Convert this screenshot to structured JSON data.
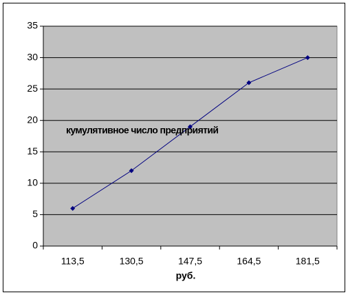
{
  "chart_data": {
    "type": "line",
    "annotation": "кумулятивное число предприятий",
    "x_label": "руб.",
    "categories": [
      "113,5",
      "130,5",
      "147,5",
      "164,5",
      "181,5"
    ],
    "values": [
      6,
      12,
      19,
      26,
      30
    ],
    "color": "#000080",
    "plot_background": "#c0c0c0",
    "ylim": [
      0,
      35
    ],
    "yticks": [
      0,
      5,
      10,
      15,
      20,
      25,
      30,
      35
    ],
    "grid": true
  }
}
